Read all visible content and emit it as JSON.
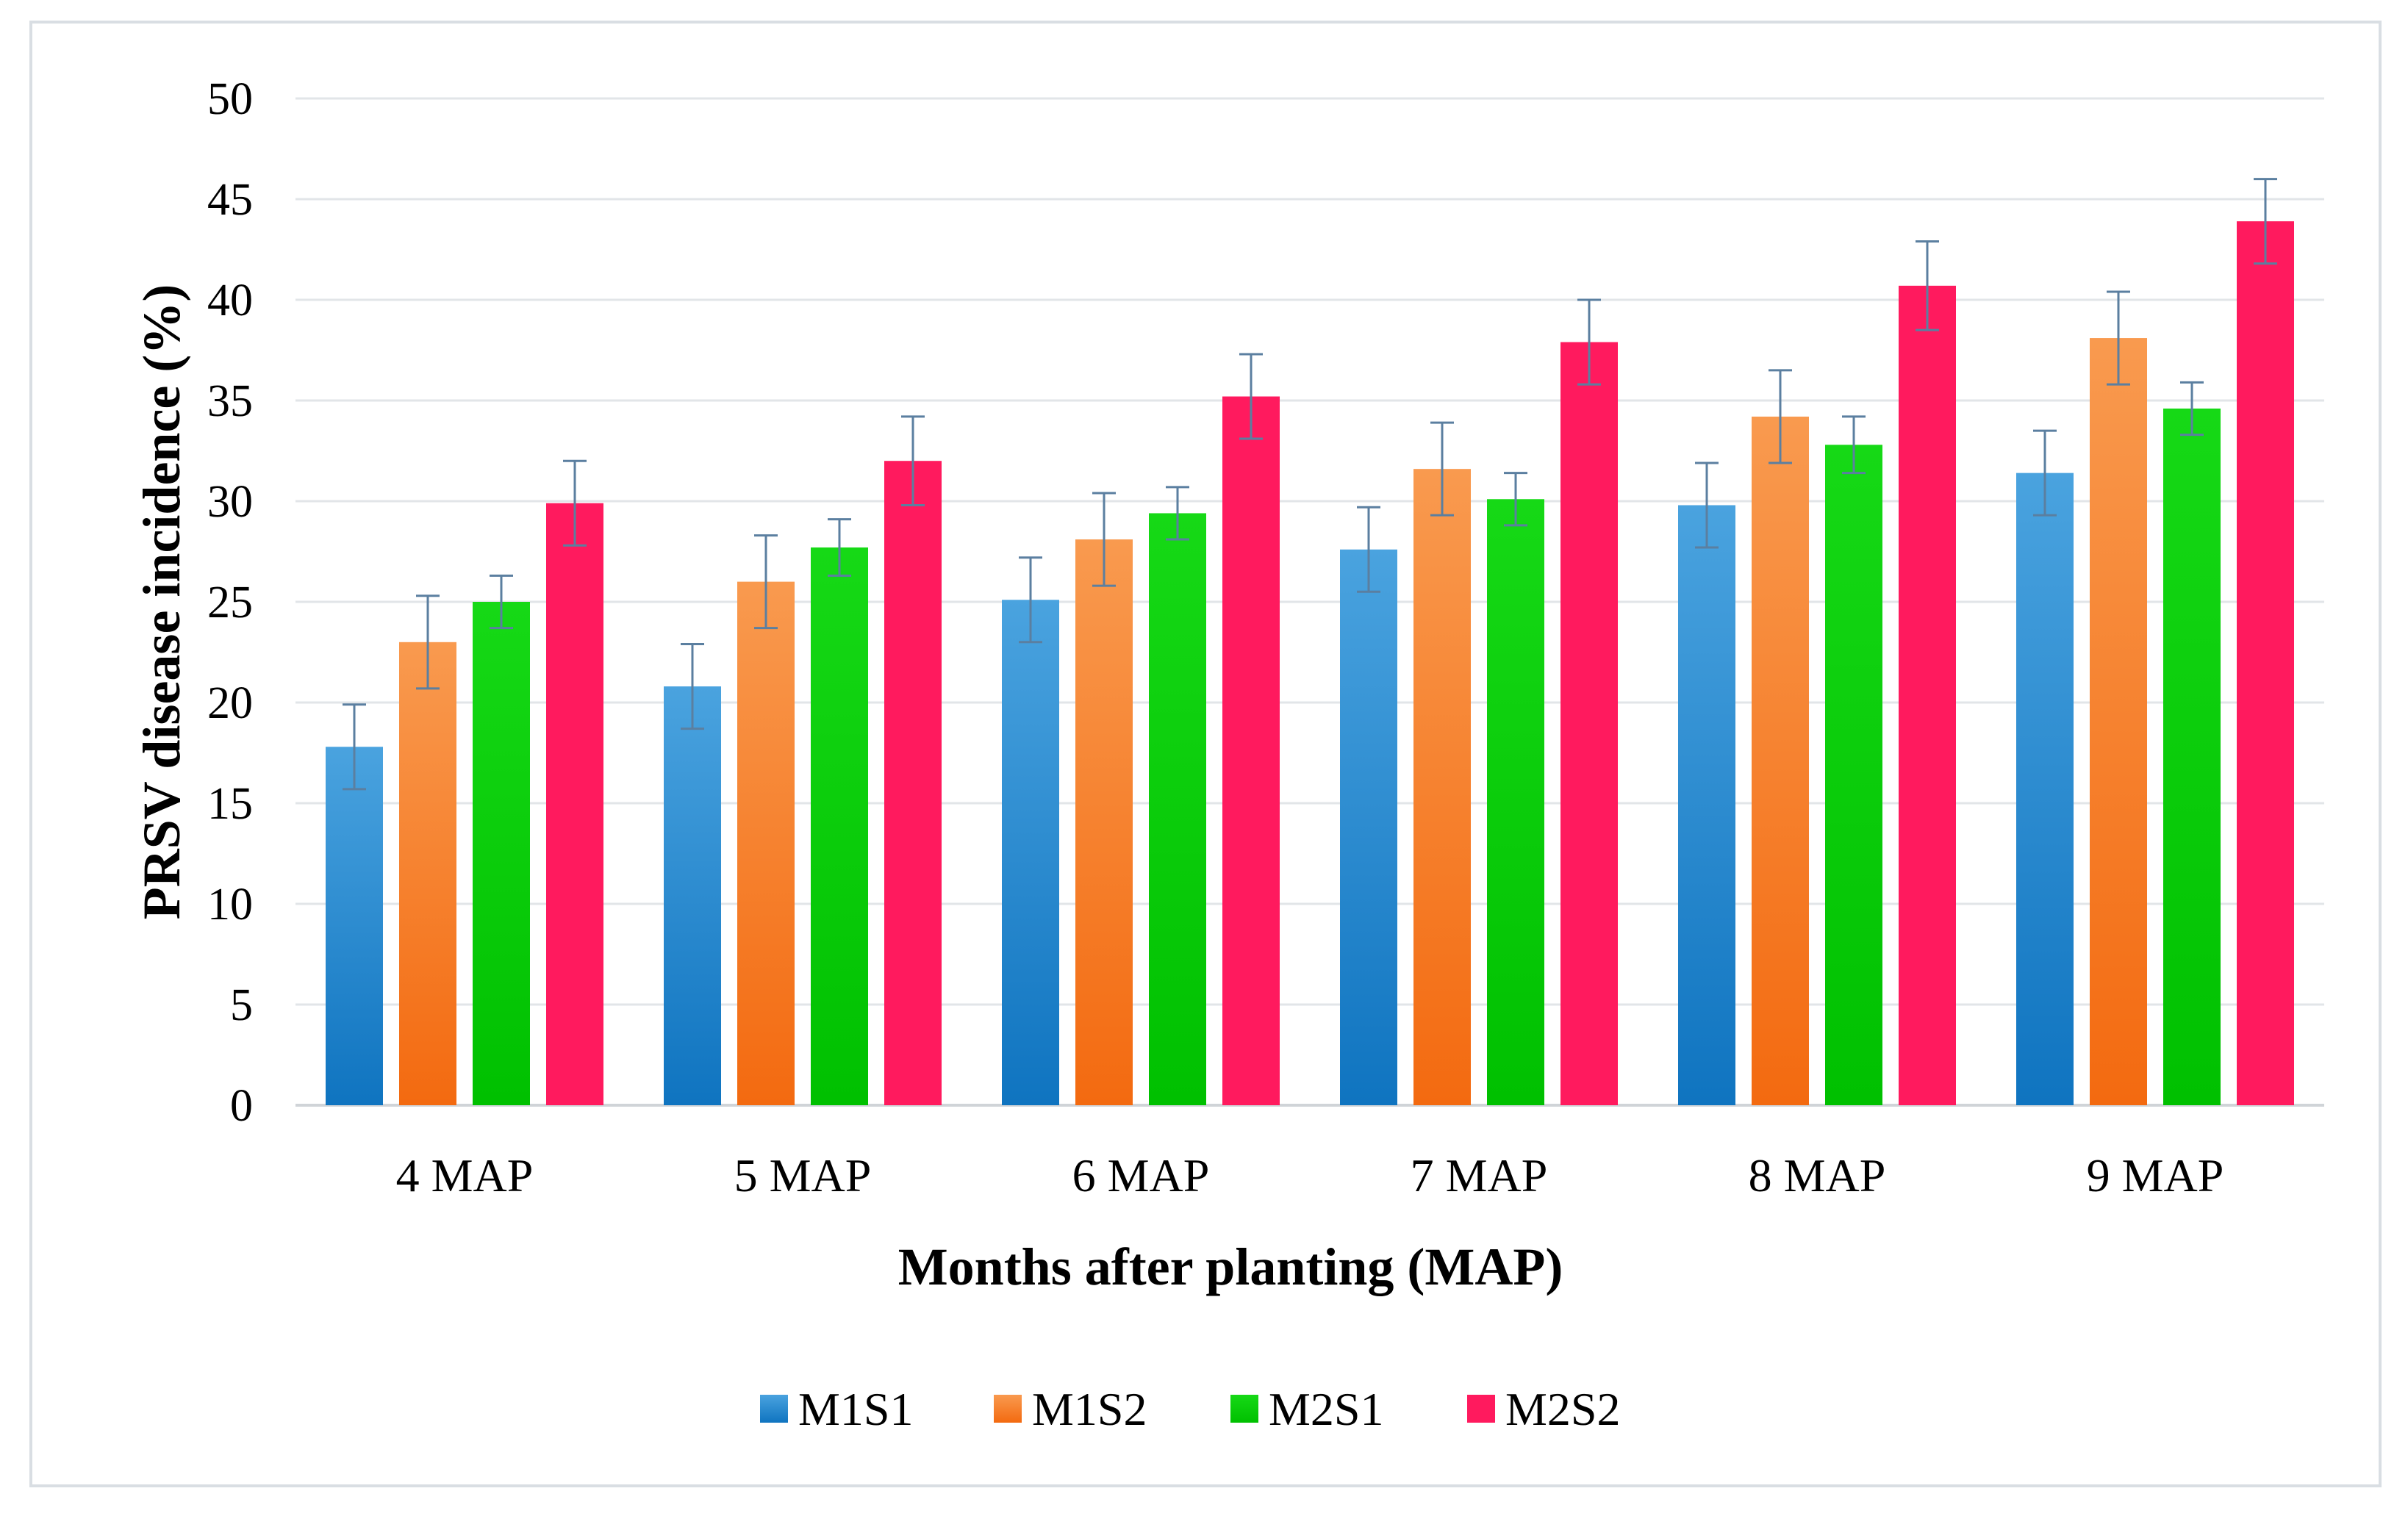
{
  "chart_data": {
    "type": "bar",
    "title": "",
    "xlabel": "Months after planting (MAP)",
    "ylabel": "PRSV disease incidence (%)",
    "ylim": [
      0,
      50
    ],
    "yticks": [
      0,
      5,
      10,
      15,
      20,
      25,
      30,
      35,
      40,
      45,
      50
    ],
    "grid": true,
    "legend_position": "bottom",
    "categories": [
      "4 MAP",
      "5 MAP",
      "6 MAP",
      "7 MAP",
      "8 MAP",
      "9 MAP"
    ],
    "series": [
      {
        "name": "M1S1",
        "color_top": "#4aa3df",
        "color_bottom": "#0f74c0",
        "values": [
          17.8,
          20.8,
          25.1,
          27.6,
          29.8,
          31.4
        ],
        "errors": [
          2.1,
          2.1,
          2.1,
          2.1,
          2.1,
          2.1
        ]
      },
      {
        "name": "M1S2",
        "color_top": "#f99a4f",
        "color_bottom": "#f36a10",
        "values": [
          23.0,
          26.0,
          28.1,
          31.6,
          34.2,
          38.1
        ],
        "errors": [
          2.3,
          2.3,
          2.3,
          2.3,
          2.3,
          2.3
        ]
      },
      {
        "name": "M2S1",
        "color_top": "#16d916",
        "color_bottom": "#00c000",
        "values": [
          25.0,
          27.7,
          29.4,
          30.1,
          32.8,
          34.6
        ],
        "errors": [
          1.3,
          1.4,
          1.3,
          1.3,
          1.4,
          1.3
        ]
      },
      {
        "name": "M2S2",
        "color_top": "#ff1a5e",
        "color_bottom": "#ff1a5e",
        "values": [
          29.9,
          32.0,
          35.2,
          37.9,
          40.7,
          43.9
        ],
        "errors": [
          2.1,
          2.2,
          2.1,
          2.1,
          2.2,
          2.1
        ]
      }
    ]
  }
}
